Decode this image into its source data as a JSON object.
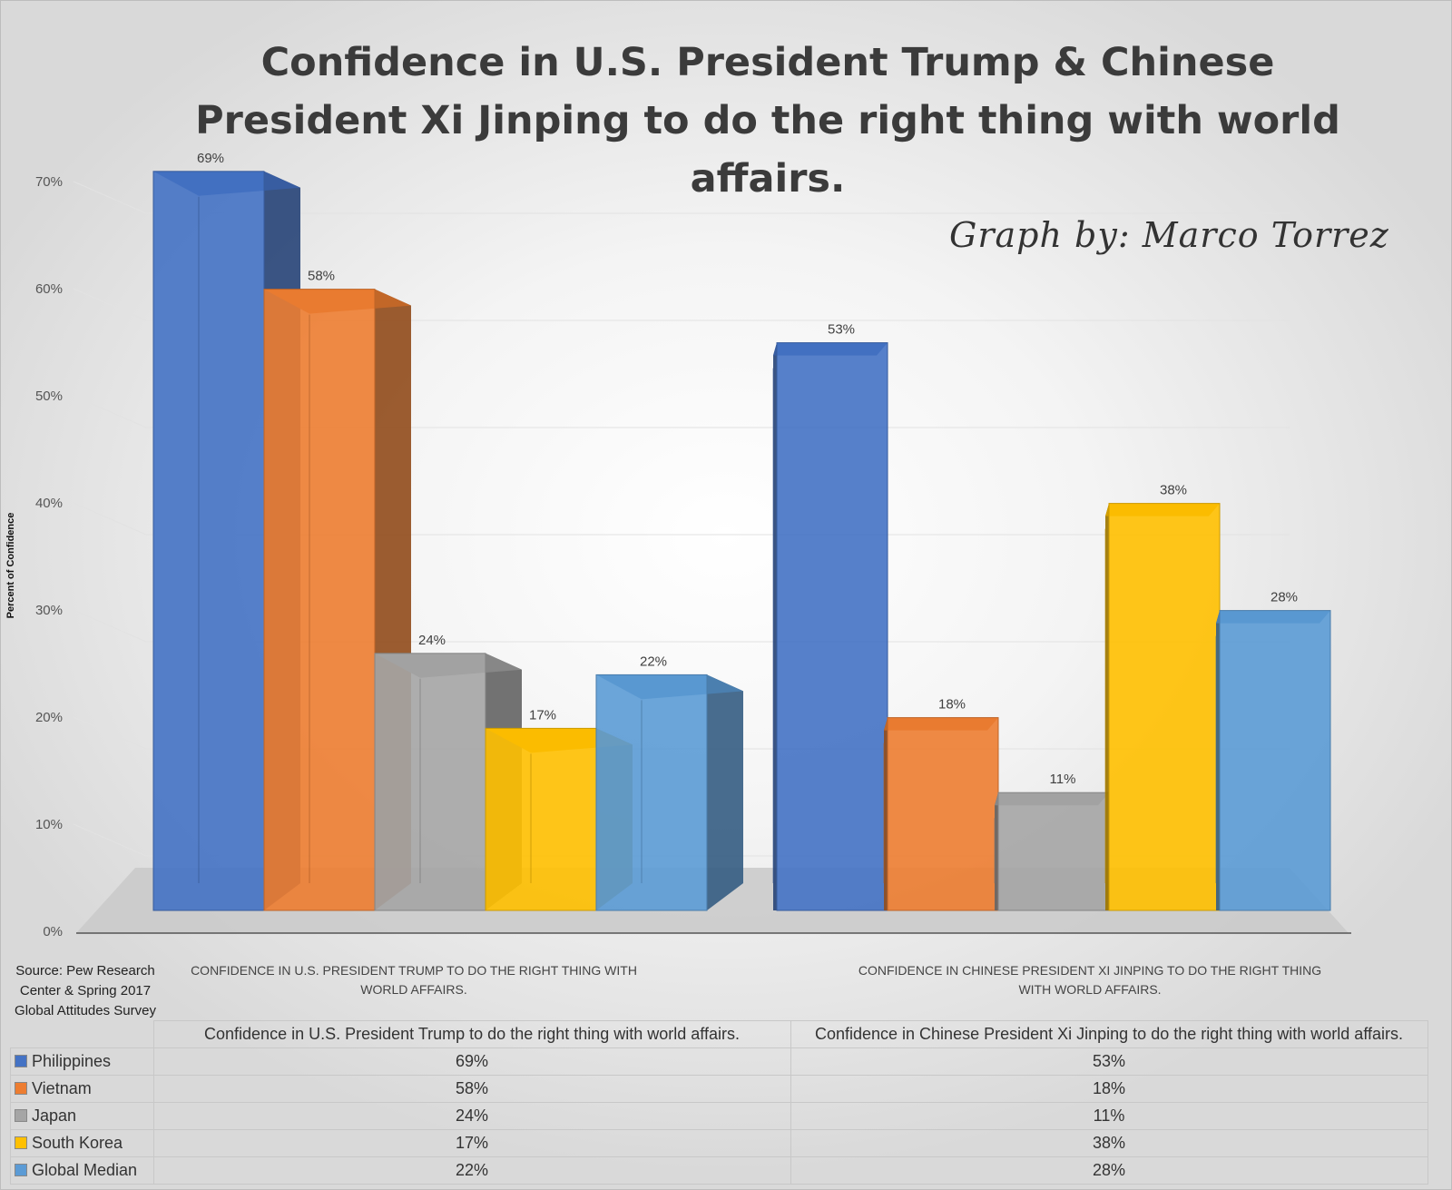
{
  "title": "Confidence in U.S. President Trump & Chinese President Xi Jinping to do the right thing with world affairs.",
  "signature": "Graph by: Marco Torrez",
  "source": "Source: Pew Research Center & Spring 2017 Global Attitudes Survey",
  "chart_data": {
    "type": "bar",
    "style": "3d-clustered-column",
    "title": "Confidence in U.S. President Trump & Chinese President Xi Jinping to do the right thing with world affairs.",
    "xlabel": "",
    "ylabel": "Percent of Confidence",
    "ylim": [
      0,
      70
    ],
    "yticks": [
      "0%",
      "10%",
      "20%",
      "30%",
      "40%",
      "50%",
      "60%",
      "70%"
    ],
    "categories": [
      "CONFIDENCE IN U.S. PRESIDENT TRUMP TO DO THE RIGHT THING WITH WORLD AFFAIRS.",
      "CONFIDENCE IN CHINESE PRESIDENT XI JINPING TO DO THE RIGHT THING WITH WORLD AFFAIRS."
    ],
    "series": [
      {
        "name": "Philippines",
        "color": "#4472C4",
        "values": [
          69,
          53
        ],
        "labels": [
          "69%",
          "53%"
        ]
      },
      {
        "name": "Vietnam",
        "color": "#ED7D31",
        "values": [
          58,
          18
        ],
        "labels": [
          "58%",
          "18%"
        ]
      },
      {
        "name": "Japan",
        "color": "#A5A5A5",
        "values": [
          24,
          11
        ],
        "labels": [
          "24%",
          "11%"
        ]
      },
      {
        "name": "South Korea",
        "color": "#FFC000",
        "values": [
          17,
          38
        ],
        "labels": [
          "17%",
          "38%"
        ]
      },
      {
        "name": "Global Median",
        "color": "#5B9BD5",
        "values": [
          22,
          28
        ],
        "labels": [
          "22%",
          "28%"
        ]
      }
    ],
    "grid": true,
    "legend": "data-table-below"
  },
  "table": {
    "columns": [
      "Confidence in U.S. President Trump to do the right thing with world affairs.",
      "Confidence in Chinese President Xi Jinping to do the right thing with world affairs."
    ],
    "rows": [
      {
        "name": "Philippines",
        "color": "#4472C4",
        "cells": [
          "69%",
          "53%"
        ]
      },
      {
        "name": "Vietnam",
        "color": "#ED7D31",
        "cells": [
          "58%",
          "18%"
        ]
      },
      {
        "name": "Japan",
        "color": "#A5A5A5",
        "cells": [
          "24%",
          "11%"
        ]
      },
      {
        "name": "South Korea",
        "color": "#FFC000",
        "cells": [
          "17%",
          "38%"
        ]
      },
      {
        "name": "Global Median",
        "color": "#5B9BD5",
        "cells": [
          "22%",
          "28%"
        ]
      }
    ]
  }
}
